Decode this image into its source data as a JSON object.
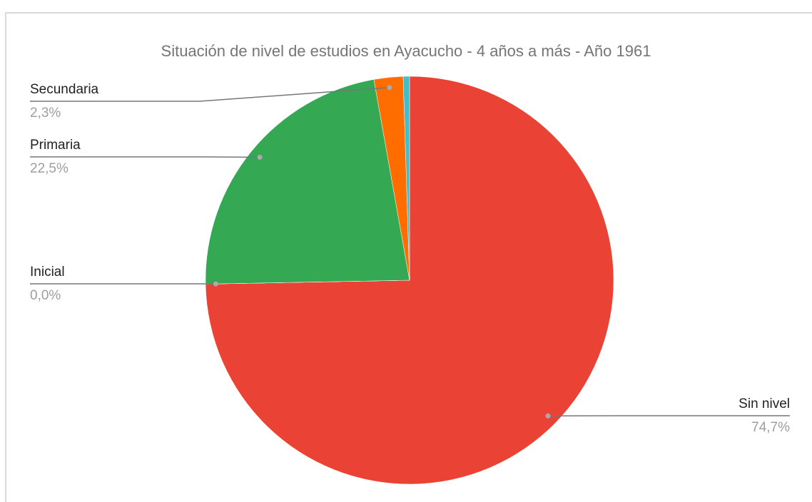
{
  "chart_data": {
    "type": "pie",
    "title": "Situación de nivel de estudios en Ayacucho - 4 años a más - Año 1961",
    "categories": [
      "Sin nivel",
      "Inicial",
      "Primaria",
      "Secundaria",
      null
    ],
    "values": [
      74.7,
      0.0,
      22.5,
      2.3,
      0.5
    ],
    "value_labels": [
      "74,7%",
      "0,0%",
      "22,5%",
      "2,3%",
      null
    ],
    "colors": [
      "#ea4335",
      "#fbbc04",
      "#34a853",
      "#ff6d01",
      "#46bdc6"
    ]
  }
}
